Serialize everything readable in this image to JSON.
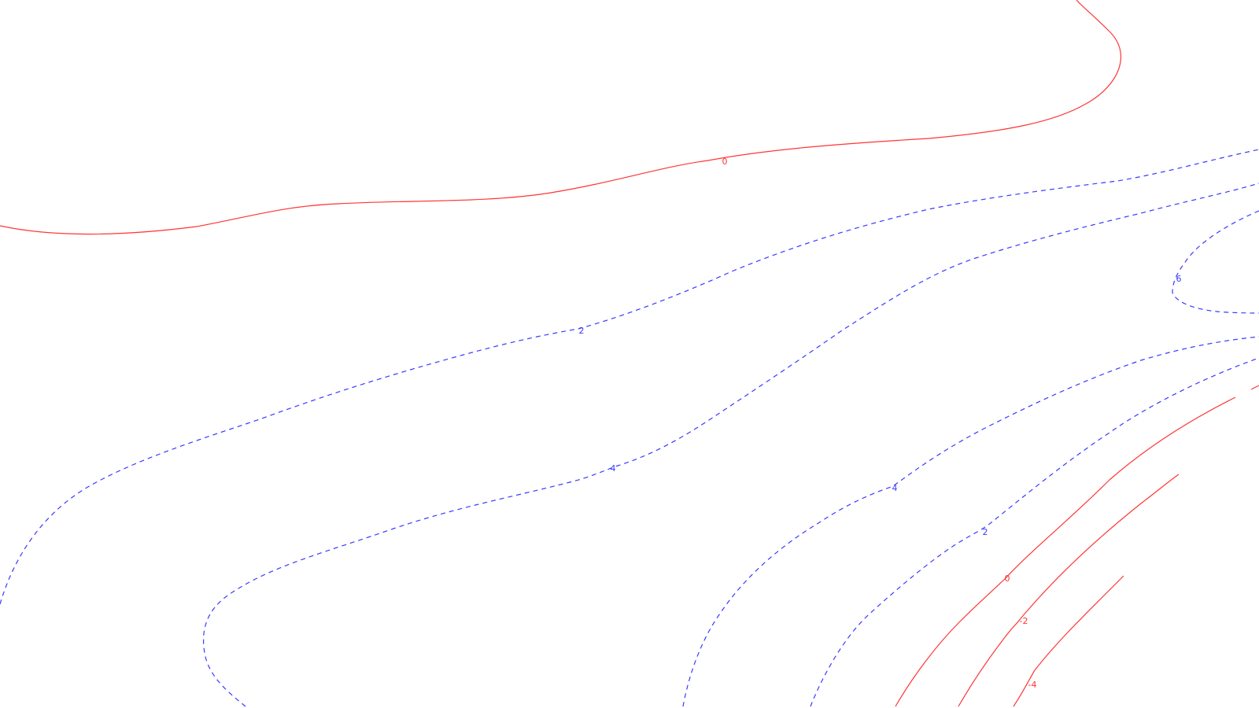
{
  "map": {
    "kind": "contour-map",
    "colors": {
      "positive": "#3a3aff",
      "zero_negative": "#ff3535",
      "background": "#ffffff"
    },
    "contours": [
      {
        "id": "zero-north",
        "level": 0,
        "style": "solid",
        "label": "0"
      },
      {
        "id": "two-west",
        "level": 2,
        "style": "dashed",
        "label": "2"
      },
      {
        "id": "four-west",
        "level": 4,
        "style": "dashed",
        "label": "4"
      },
      {
        "id": "six-east",
        "level": 6,
        "style": "dashed",
        "label": "6"
      },
      {
        "id": "four-east",
        "level": 4,
        "style": "dashed",
        "label": "4"
      },
      {
        "id": "two-east",
        "level": 2,
        "style": "dashed",
        "label": "2"
      },
      {
        "id": "zero-southeast",
        "level": 0,
        "style": "solid",
        "label": "0"
      },
      {
        "id": "minus-two-southeast",
        "level": -2,
        "style": "solid",
        "label": "-2"
      },
      {
        "id": "minus-four-southeast",
        "level": -4,
        "style": "solid",
        "label": "-4"
      }
    ]
  }
}
